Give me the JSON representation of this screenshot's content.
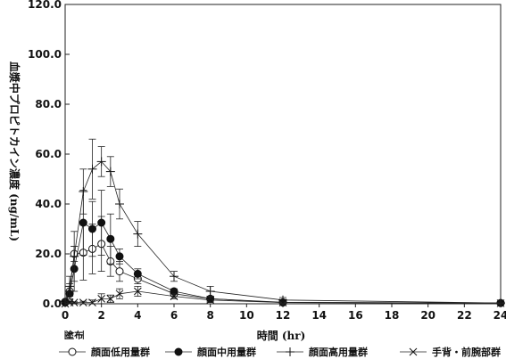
{
  "chart_data": {
    "type": "line",
    "title": "",
    "xlabel": "時間 (hr)",
    "ylabel": "血漿中プロピトカイン濃度 (ng/mL)",
    "xlim": [
      0,
      24
    ],
    "ylim": [
      0,
      120
    ],
    "xticks": [
      0,
      2,
      4,
      6,
      8,
      10,
      12,
      14,
      16,
      18,
      20,
      22,
      24
    ],
    "yticks": [
      0,
      20,
      40,
      60,
      80,
      100,
      120
    ],
    "ytick_labels": [
      "0.0",
      "20.0",
      "40.0",
      "60.0",
      "80.0",
      "100.0",
      "120.0"
    ],
    "grid": false,
    "legend_position": "bottom",
    "annotation": "塗布",
    "annotation_range": [
      0,
      1
    ],
    "series": [
      {
        "name": "顔面低用量群",
        "marker": "open-circle",
        "x": [
          0,
          0.25,
          0.5,
          1,
          1.5,
          2,
          2.5,
          3,
          4,
          6,
          8,
          12,
          24
        ],
        "y": [
          0.5,
          5,
          20,
          20.5,
          22,
          24,
          17,
          13,
          10,
          4,
          2,
          0.5,
          0.3
        ],
        "err": [
          0.5,
          3,
          3,
          11,
          10,
          11,
          6,
          4,
          2,
          1,
          1,
          0.5,
          0.2
        ]
      },
      {
        "name": "顔面中用量群",
        "marker": "filled-circle",
        "x": [
          0,
          0.25,
          0.5,
          1,
          1.5,
          2,
          2.5,
          3,
          4,
          6,
          8,
          12,
          24
        ],
        "y": [
          0.8,
          4,
          14,
          32.5,
          30,
          32.5,
          26,
          19,
          12,
          5,
          2,
          0.6,
          0.3
        ],
        "err": [
          0.5,
          3,
          9,
          13,
          11,
          13,
          10,
          3,
          2,
          1,
          1,
          0.5,
          0.2
        ]
      },
      {
        "name": "顔面高用量群",
        "marker": "plus",
        "x": [
          0,
          0.25,
          0.5,
          1,
          1.5,
          2,
          2.5,
          3,
          4,
          6,
          8,
          12,
          24
        ],
        "y": [
          1,
          7,
          19,
          45,
          54,
          57,
          53,
          40,
          28,
          11,
          5,
          1.5,
          0.3
        ],
        "err": [
          0.5,
          4,
          10,
          9,
          12,
          6,
          6,
          6,
          5,
          2,
          2,
          1,
          0.2
        ]
      },
      {
        "name": "手背・前腕部群",
        "marker": "cross",
        "x": [
          0,
          0.25,
          0.5,
          1,
          1.5,
          2,
          2.5,
          3,
          4,
          6,
          8,
          12,
          24
        ],
        "y": [
          0,
          0.5,
          0.5,
          0.5,
          0.5,
          2,
          2,
          4,
          5,
          3,
          1.5,
          0.5,
          0.2
        ],
        "err": [
          0,
          0.3,
          0.3,
          0.5,
          1,
          2,
          1.5,
          2,
          2,
          1,
          1,
          0.3,
          0.1
        ]
      }
    ]
  }
}
